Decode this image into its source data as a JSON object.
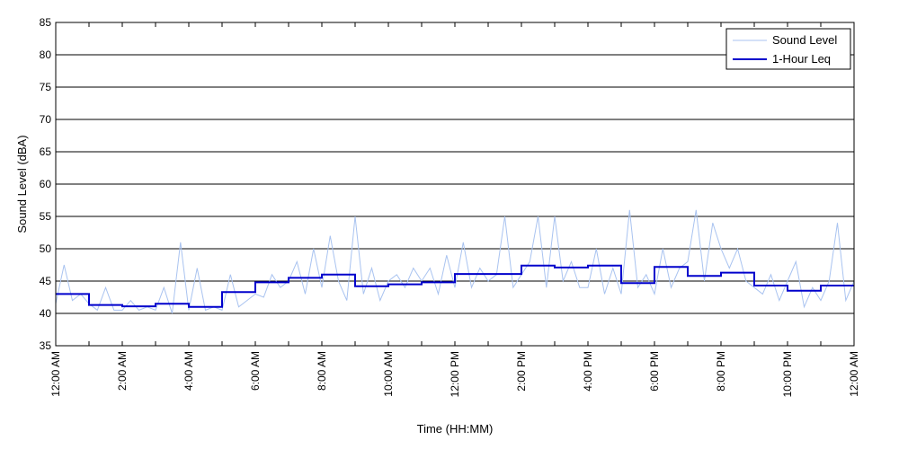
{
  "chart_data": {
    "type": "line",
    "xlabel": "Time (HH:MM)",
    "ylabel": "Sound Level (dBA)",
    "ylim": [
      35,
      85
    ],
    "yticks": [
      35,
      40,
      45,
      50,
      55,
      60,
      65,
      70,
      75,
      80,
      85
    ],
    "xlim_hours": [
      0,
      24
    ],
    "xtick_hours": [
      0,
      2,
      4,
      6,
      8,
      10,
      12,
      14,
      16,
      18,
      20,
      22,
      24
    ],
    "xtick_labels": [
      "12:00 AM",
      "2:00 AM",
      "4:00 AM",
      "6:00 AM",
      "8:00 AM",
      "10:00 AM",
      "12:00 PM",
      "2:00 PM",
      "4:00 PM",
      "6:00 PM",
      "8:00 PM",
      "10:00 PM",
      "12:00 AM"
    ],
    "grid": "horizontal",
    "legend_position": "top-right",
    "series": [
      {
        "name": "Sound Level",
        "color": "#a9c3f0",
        "style": "thin",
        "hours": [
          0,
          0.25,
          0.5,
          0.75,
          1,
          1.25,
          1.5,
          1.75,
          2,
          2.25,
          2.5,
          2.75,
          3,
          3.25,
          3.5,
          3.75,
          4,
          4.25,
          4.5,
          4.75,
          5,
          5.25,
          5.5,
          5.75,
          6,
          6.25,
          6.5,
          6.75,
          7,
          7.25,
          7.5,
          7.75,
          8,
          8.25,
          8.5,
          8.75,
          9,
          9.25,
          9.5,
          9.75,
          10,
          10.25,
          10.5,
          10.75,
          11,
          11.25,
          11.5,
          11.75,
          12,
          12.25,
          12.5,
          12.75,
          13,
          13.25,
          13.5,
          13.75,
          14,
          14.25,
          14.5,
          14.75,
          15,
          15.25,
          15.5,
          15.75,
          16,
          16.25,
          16.5,
          16.75,
          17,
          17.25,
          17.5,
          17.75,
          18,
          18.25,
          18.5,
          18.75,
          19,
          19.25,
          19.5,
          19.75,
          20,
          20.25,
          20.5,
          20.75,
          21,
          21.25,
          21.5,
          21.75,
          22,
          22.25,
          22.5,
          22.75,
          23,
          23.25,
          23.5,
          23.75,
          24
        ],
        "values": [
          41.5,
          47.5,
          42,
          43,
          41.5,
          40.5,
          44,
          40.5,
          40.5,
          42,
          40.5,
          41,
          40.5,
          44,
          40,
          51,
          40.5,
          47,
          40.5,
          41,
          40.5,
          46,
          41,
          42,
          43,
          42.5,
          46,
          44,
          45,
          48,
          43,
          50,
          44,
          52,
          45,
          42,
          55,
          43,
          47,
          42,
          45,
          46,
          44,
          47,
          45,
          47,
          43,
          49,
          44,
          51,
          44,
          47,
          45,
          46,
          55,
          44,
          46,
          48,
          55,
          44,
          55,
          45,
          48,
          44,
          44,
          50,
          43,
          47,
          43,
          56,
          44,
          46,
          43,
          50,
          44,
          47,
          48,
          56,
          45,
          54,
          50,
          47,
          50,
          45,
          44,
          43,
          46,
          42,
          45,
          48,
          41,
          44,
          42,
          45,
          54,
          42,
          45
        ]
      },
      {
        "name": "1-Hour Leq",
        "color": "#0000cc",
        "style": "step",
        "hourly_values": [
          43.0,
          41.3,
          41.1,
          41.5,
          41.0,
          43.3,
          44.8,
          45.5,
          46.0,
          44.2,
          44.5,
          44.8,
          46.1,
          46.1,
          47.4,
          47.1,
          47.4,
          44.7,
          47.2,
          45.8,
          46.3,
          44.3,
          43.5,
          44.3
        ]
      }
    ]
  }
}
